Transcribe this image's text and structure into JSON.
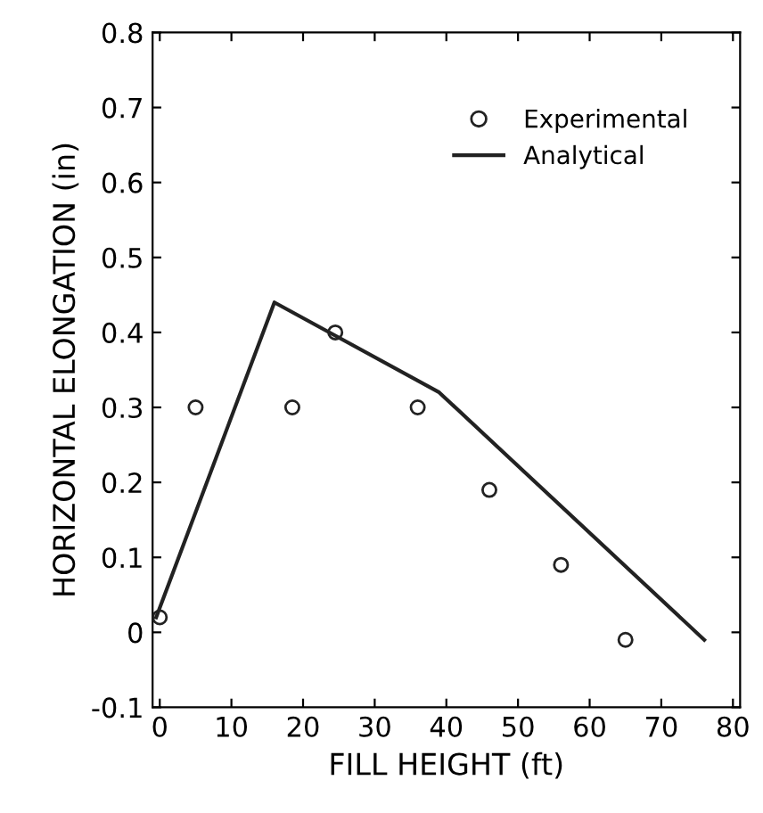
{
  "chart_data": {
    "type": "scatter",
    "xlabel": "FILL HEIGHT (ft)",
    "ylabel": "HORIZONTAL ELONGATION (in)",
    "series": [
      {
        "name": "Experimental",
        "color": "#222222",
        "marker": "circle",
        "x": [
          0,
          5,
          18.5,
          24.5,
          36,
          46,
          56,
          65
        ],
        "values": [
          0.02,
          0.3,
          0.3,
          0.4,
          0.3,
          0.19,
          0.09,
          -0.01
        ]
      },
      {
        "name": "Analytical",
        "type": "line",
        "color": "#222222",
        "marker": "none",
        "line_style": "solid",
        "x": [
          -0.5,
          16,
          39,
          76
        ],
        "values": [
          0.02,
          0.44,
          0.32,
          -0.01
        ]
      }
    ],
    "xlim": [
      -1,
      81
    ],
    "ylim": [
      -0.1,
      0.8
    ],
    "xticks": [
      {
        "value": 0,
        "label": "0"
      },
      10,
      20,
      30,
      40,
      50,
      60,
      70,
      80
    ],
    "yticks": [
      -0.1,
      {
        "value": 0,
        "label": "0"
      },
      0.1,
      0.2,
      0.3,
      0.4,
      0.5,
      0.6,
      0.7,
      0.8
    ],
    "grid": false,
    "legend": "top right"
  }
}
